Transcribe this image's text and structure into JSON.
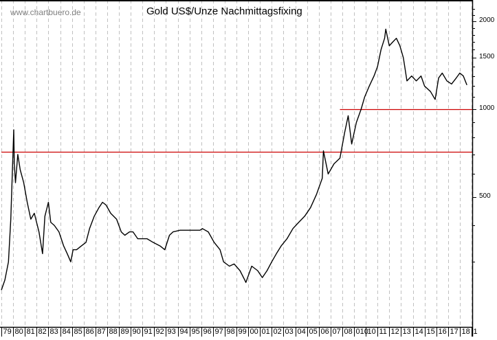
{
  "watermark": "www.chartbuero.de",
  "chart_data": {
    "type": "line",
    "title": "Gold US$/Unze Nachmittagsfixing",
    "xlabel": "",
    "ylabel": "",
    "y_scale": "log",
    "ylim": [
      230,
      2250
    ],
    "y_ticks": [
      500,
      1000,
      1500,
      2000
    ],
    "x_tick_labels": [
      "79",
      "80",
      "81",
      "82",
      "83",
      "84",
      "85",
      "86",
      "87",
      "88",
      "89",
      "90",
      "91",
      "92",
      "93",
      "94",
      "95",
      "96",
      "97",
      "98",
      "99",
      "00",
      "01",
      "02",
      "03",
      "04",
      "05",
      "06",
      "07",
      "08",
      "010",
      "10",
      "11",
      "12",
      "13",
      "14",
      "15",
      "16",
      "17",
      "18",
      "1"
    ],
    "grid": {
      "vertical": true,
      "horizontal": false,
      "style": "dashed",
      "color": "#c0c0c0"
    },
    "series": [
      {
        "name": "Gold US$/Unze",
        "color": "#000000",
        "x": [
          1979.0,
          1979.3,
          1979.6,
          1979.8,
          1980.05,
          1980.1,
          1980.2,
          1980.4,
          1980.6,
          1980.9,
          1981.2,
          1981.5,
          1981.8,
          1982.2,
          1982.5,
          1982.7,
          1983.0,
          1983.2,
          1983.5,
          1983.9,
          1984.3,
          1984.6,
          1984.9,
          1985.1,
          1985.4,
          1985.8,
          1986.2,
          1986.5,
          1986.9,
          1987.3,
          1987.6,
          1987.9,
          1988.3,
          1988.8,
          1989.2,
          1989.5,
          1989.9,
          1990.2,
          1990.6,
          1990.9,
          1991.4,
          1991.9,
          1992.5,
          1992.9,
          1993.3,
          1993.6,
          1994.2,
          1994.8,
          1995.4,
          1995.9,
          1996.1,
          1996.6,
          1997.1,
          1997.6,
          1997.9,
          1998.4,
          1998.8,
          1999.3,
          1999.7,
          1999.8,
          2000.3,
          2000.8,
          2001.2,
          2001.6,
          2002.0,
          2002.4,
          2002.8,
          2003.3,
          2003.8,
          2004.3,
          2004.8,
          2005.3,
          2005.8,
          2006.3,
          2006.4,
          2006.8,
          2007.3,
          2007.8,
          2008.2,
          2008.5,
          2008.8,
          2009.2,
          2009.6,
          2009.9,
          2010.3,
          2010.7,
          2011.0,
          2011.3,
          2011.6,
          2011.7,
          2012.0,
          2012.3,
          2012.6,
          2012.9,
          2013.2,
          2013.5,
          2013.9,
          2014.3,
          2014.7,
          2015.0,
          2015.5,
          2015.9,
          2016.2,
          2016.5,
          2016.9,
          2017.3,
          2017.7,
          2018.0,
          2018.3,
          2018.6
        ],
        "values": [
          240,
          260,
          300,
          420,
          850,
          650,
          560,
          700,
          620,
          560,
          480,
          420,
          440,
          380,
          320,
          430,
          480,
          410,
          400,
          380,
          340,
          320,
          300,
          330,
          330,
          340,
          350,
          390,
          430,
          460,
          480,
          470,
          440,
          420,
          380,
          370,
          380,
          380,
          360,
          360,
          360,
          350,
          340,
          330,
          370,
          380,
          385,
          385,
          385,
          385,
          390,
          380,
          350,
          330,
          300,
          290,
          295,
          280,
          260,
          255,
          290,
          280,
          265,
          280,
          300,
          320,
          340,
          360,
          390,
          410,
          430,
          460,
          510,
          580,
          720,
          600,
          650,
          680,
          830,
          950,
          760,
          900,
          1000,
          1100,
          1200,
          1300,
          1400,
          1600,
          1750,
          1880,
          1650,
          1700,
          1750,
          1650,
          1500,
          1250,
          1300,
          1250,
          1300,
          1200,
          1150,
          1080,
          1280,
          1330,
          1250,
          1220,
          1280,
          1330,
          1300,
          1210
        ]
      }
    ],
    "annotations": [
      {
        "type": "hline",
        "y": 715,
        "color": "#cc0000",
        "from_x": 1979.0,
        "to_x": 2019.2
      },
      {
        "type": "hline",
        "y": 1000,
        "color": "#cc0000",
        "from_x": 2007.8,
        "to_x": 2019.2
      }
    ]
  }
}
